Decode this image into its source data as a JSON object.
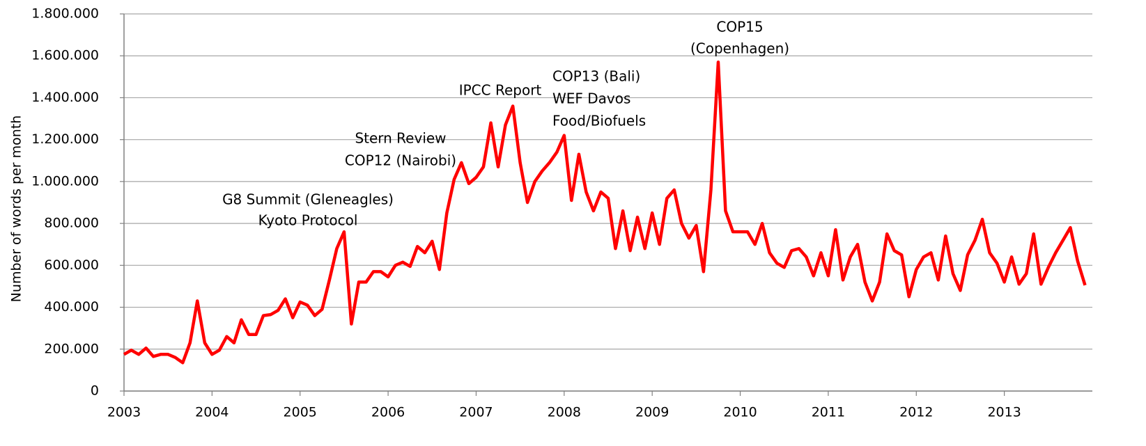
{
  "chart_data": {
    "type": "line",
    "y_label": "Number of words per month",
    "x": [
      2003,
      2003.083,
      2003.167,
      2003.25,
      2003.333,
      2003.417,
      2003.5,
      2003.583,
      2003.667,
      2003.75,
      2003.833,
      2003.917,
      2004,
      2004.083,
      2004.167,
      2004.25,
      2004.333,
      2004.417,
      2004.5,
      2004.583,
      2004.667,
      2004.75,
      2004.833,
      2004.917,
      2005,
      2005.083,
      2005.167,
      2005.25,
      2005.333,
      2005.417,
      2005.5,
      2005.583,
      2005.667,
      2005.75,
      2005.833,
      2005.917,
      2006,
      2006.083,
      2006.167,
      2006.25,
      2006.333,
      2006.417,
      2006.5,
      2006.583,
      2006.667,
      2006.75,
      2006.833,
      2006.917,
      2007,
      2007.083,
      2007.167,
      2007.25,
      2007.333,
      2007.417,
      2007.5,
      2007.583,
      2007.667,
      2007.75,
      2007.833,
      2007.917,
      2008,
      2008.083,
      2008.167,
      2008.25,
      2008.333,
      2008.417,
      2008.5,
      2008.583,
      2008.667,
      2008.75,
      2008.833,
      2008.917,
      2009,
      2009.083,
      2009.167,
      2009.25,
      2009.333,
      2009.417,
      2009.5,
      2009.583,
      2009.667,
      2009.75,
      2009.833,
      2009.917,
      2010,
      2010.083,
      2010.167,
      2010.25,
      2010.333,
      2010.417,
      2010.5,
      2010.583,
      2010.667,
      2010.75,
      2010.833,
      2010.917,
      2011,
      2011.083,
      2011.167,
      2011.25,
      2011.333,
      2011.417,
      2011.5,
      2011.583,
      2011.667,
      2011.75,
      2011.833,
      2011.917,
      2012,
      2012.083,
      2012.167,
      2012.25,
      2012.333,
      2012.417,
      2012.5,
      2012.583,
      2012.667,
      2012.75,
      2012.833,
      2012.917,
      2013,
      2013.083,
      2013.167,
      2013.25,
      2013.333,
      2013.417,
      2013.5,
      2013.583,
      2013.667,
      2013.75,
      2013.833,
      2013.917
    ],
    "series": [
      {
        "name": "Number of words per month",
        "color": "#ff0000",
        "values": [
          175000,
          195000,
          175000,
          205000,
          165000,
          175000,
          175000,
          160000,
          135000,
          230000,
          430000,
          230000,
          175000,
          195000,
          260000,
          230000,
          340000,
          270000,
          270000,
          360000,
          365000,
          385000,
          440000,
          350000,
          425000,
          410000,
          360000,
          390000,
          530000,
          680000,
          760000,
          320000,
          520000,
          520000,
          570000,
          570000,
          545000,
          600000,
          615000,
          595000,
          690000,
          660000,
          715000,
          580000,
          850000,
          1010000,
          1090000,
          990000,
          1020000,
          1070000,
          1280000,
          1070000,
          1270000,
          1360000,
          1090000,
          900000,
          1000000,
          1050000,
          1090000,
          1140000,
          1220000,
          910000,
          1130000,
          950000,
          860000,
          950000,
          920000,
          680000,
          860000,
          670000,
          830000,
          680000,
          850000,
          700000,
          920000,
          960000,
          800000,
          730000,
          790000,
          570000,
          960000,
          1570000,
          860000,
          760000,
          760000,
          760000,
          700000,
          800000,
          660000,
          610000,
          590000,
          670000,
          680000,
          640000,
          550000,
          660000,
          550000,
          770000,
          530000,
          640000,
          700000,
          520000,
          430000,
          520000,
          750000,
          670000,
          650000,
          450000,
          580000,
          640000,
          660000,
          530000,
          740000,
          560000,
          480000,
          650000,
          720000,
          820000,
          660000,
          610000,
          520000,
          640000,
          510000,
          560000,
          750000,
          510000,
          590000,
          660000,
          720000,
          780000,
          620000,
          505000
        ]
      }
    ],
    "xlim": [
      2003,
      2014
    ],
    "xticks": [
      2003,
      2004,
      2005,
      2006,
      2007,
      2008,
      2009,
      2010,
      2011,
      2012,
      2013
    ],
    "ylim": [
      0,
      1800000
    ],
    "yticks": [
      0,
      {
        "value": 200000,
        "label": "200.000"
      },
      {
        "value": 400000,
        "label": "400.000"
      },
      {
        "value": 600000,
        "label": "600.000"
      },
      {
        "value": 800000,
        "label": "800.000"
      },
      {
        "value": 1000000,
        "label": "1.000.000"
      },
      {
        "value": 1200000,
        "label": "1.200.000"
      },
      {
        "value": 1400000,
        "label": "1.400.000"
      },
      {
        "value": 1600000,
        "label": "1.600.000"
      },
      {
        "value": 1800000,
        "label": "1.800.000"
      }
    ],
    "grid": true,
    "annotations": [
      {
        "lines": [
          "G8 Summit (Gleneagles)",
          "Kyoto Protocol"
        ]
      },
      {
        "lines": [
          "Stern Review",
          "COP12 (Nairobi)"
        ]
      },
      {
        "lines": [
          "IPCC Report"
        ]
      },
      {
        "lines": [
          "COP13 (Bali)",
          "WEF Davos",
          "Food/Biofuels"
        ]
      },
      {
        "lines": [
          "COP15",
          "(Copenhagen)"
        ]
      }
    ]
  }
}
